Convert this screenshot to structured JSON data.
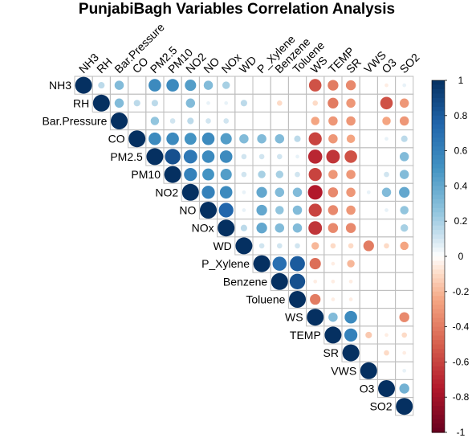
{
  "chart_data": {
    "type": "heatmap",
    "subtype": "correlation-matrix-upper-circles",
    "title": "PunjabiBagh Variables Correlation Analysis",
    "variables": [
      "NH3",
      "RH",
      "Bar.Pressure",
      "CO",
      "PM2.5",
      "PM10",
      "NO2",
      "NO",
      "NOx",
      "WD",
      "P_Xylene",
      "Benzene",
      "Toluene",
      "WS",
      "TEMP",
      "SR",
      "VWS",
      "O3",
      "SO2"
    ],
    "matrix": [
      [
        1,
        0.15,
        0.3,
        0,
        0.55,
        0.55,
        0.45,
        0.3,
        0.2,
        0,
        0,
        0,
        0,
        -0.55,
        -0.4,
        -0.35,
        0,
        -0.05,
        0.05
      ],
      [
        0.15,
        1,
        0.3,
        0.15,
        0.15,
        0,
        0.3,
        0.05,
        0.05,
        0.15,
        0,
        -0.1,
        0,
        -0.1,
        -0.4,
        -0.3,
        0,
        -0.55,
        -0.3
      ],
      [
        0.3,
        0.3,
        1,
        0,
        0.25,
        0.1,
        0.15,
        0.1,
        0.1,
        0,
        0,
        0,
        0,
        -0.25,
        -0.3,
        -0.3,
        0,
        -0.25,
        -0.3
      ],
      [
        0,
        0.15,
        0,
        1,
        0.55,
        0.55,
        0.5,
        0.55,
        0.45,
        0.3,
        0.3,
        0.3,
        0.15,
        -0.6,
        -0.3,
        -0.25,
        0,
        0.05,
        0.15
      ],
      [
        0.55,
        0.15,
        0.25,
        0.55,
        1,
        0.85,
        0.65,
        0.55,
        0.55,
        0.1,
        0.1,
        0.1,
        0.05,
        -0.7,
        -0.65,
        -0.55,
        0,
        0,
        0.3
      ],
      [
        0.55,
        0,
        0.1,
        0.55,
        0.85,
        1,
        0.6,
        0.5,
        0.45,
        0.1,
        0.2,
        0.2,
        0.1,
        -0.6,
        -0.3,
        -0.3,
        0,
        0.1,
        0.3
      ],
      [
        0.45,
        0.3,
        0.15,
        0.5,
        0.65,
        0.6,
        1,
        0.6,
        0.55,
        0.05,
        0.4,
        0.3,
        0.3,
        -0.75,
        -0.35,
        -0.3,
        0.05,
        0.3,
        0.4
      ],
      [
        0.3,
        0.05,
        0.1,
        0.55,
        0.55,
        0.5,
        0.6,
        1,
        0.75,
        0.05,
        0.4,
        0.25,
        0.3,
        -0.6,
        -0.35,
        -0.3,
        0,
        0.05,
        0.25
      ],
      [
        0.2,
        0.05,
        0.1,
        0.45,
        0.55,
        0.45,
        0.55,
        0.75,
        1,
        0.15,
        0.4,
        0.3,
        0.3,
        -0.65,
        -0.35,
        -0.35,
        0,
        0,
        0.2
      ],
      [
        0,
        0.15,
        0,
        0.3,
        0.1,
        0.1,
        0.05,
        0.05,
        0.15,
        1,
        0.1,
        0.1,
        0.1,
        -0.2,
        -0.1,
        -0.1,
        -0.4,
        -0.1,
        -0.25
      ],
      [
        0,
        0,
        0,
        0.3,
        0.1,
        0.2,
        0.4,
        0.4,
        0.4,
        0.1,
        1,
        0.7,
        0.8,
        -0.45,
        -0.05,
        -0.2,
        0,
        0,
        0
      ],
      [
        0,
        -0.1,
        0,
        0.3,
        0.1,
        0.2,
        0.3,
        0.25,
        0.3,
        0.1,
        0.7,
        1,
        0.85,
        -0.05,
        -0.05,
        -0.05,
        0,
        0,
        0
      ],
      [
        0,
        0,
        0,
        0.15,
        0.05,
        0.1,
        0.3,
        0.3,
        0.3,
        0.1,
        0.8,
        0.85,
        1,
        -0.4,
        -0.05,
        -0.05,
        0,
        0,
        0
      ],
      [
        -0.55,
        -0.1,
        -0.25,
        -0.6,
        -0.7,
        -0.6,
        -0.75,
        -0.6,
        -0.65,
        -0.2,
        -0.45,
        -0.05,
        -0.4,
        1,
        0.3,
        0.55,
        0,
        0,
        -0.35
      ],
      [
        -0.4,
        -0.4,
        -0.3,
        -0.3,
        -0.65,
        -0.3,
        -0.35,
        -0.35,
        -0.35,
        -0.1,
        -0.05,
        -0.05,
        -0.05,
        0.3,
        1,
        0.6,
        -0.15,
        -0.05,
        -0.1
      ],
      [
        -0.35,
        -0.3,
        -0.3,
        -0.25,
        -0.55,
        -0.3,
        -0.3,
        -0.3,
        -0.35,
        -0.1,
        -0.2,
        -0.05,
        -0.05,
        0.55,
        0.6,
        1,
        0,
        -0.1,
        -0.05
      ],
      [
        0,
        0,
        0,
        0,
        0,
        0,
        0.05,
        0,
        0,
        -0.4,
        0,
        0,
        0,
        0,
        -0.15,
        0,
        1,
        0,
        0.05
      ],
      [
        -0.05,
        -0.55,
        -0.25,
        0.05,
        0,
        0.1,
        0.3,
        0.05,
        0,
        -0.1,
        0,
        0,
        0,
        0,
        -0.05,
        -0.1,
        0,
        1,
        0.35
      ],
      [
        0.05,
        -0.3,
        -0.3,
        0.15,
        0.3,
        0.3,
        0.4,
        0.25,
        0.2,
        -0.25,
        0,
        0,
        0,
        -0.35,
        -0.1,
        -0.05,
        0.05,
        0.35,
        1
      ]
    ],
    "color_scale": {
      "min": -1,
      "max": 1,
      "stops": [
        {
          "value": -1,
          "color": "#67001F"
        },
        {
          "value": -0.75,
          "color": "#B2182B"
        },
        {
          "value": -0.5,
          "color": "#D6604D"
        },
        {
          "value": -0.25,
          "color": "#F4A582"
        },
        {
          "value": -0.1,
          "color": "#FDDBC7"
        },
        {
          "value": 0,
          "color": "#FFFFFF"
        },
        {
          "value": 0.1,
          "color": "#D1E5F0"
        },
        {
          "value": 0.25,
          "color": "#92C5DE"
        },
        {
          "value": 0.5,
          "color": "#4393C3"
        },
        {
          "value": 0.75,
          "color": "#2166AC"
        },
        {
          "value": 1,
          "color": "#053061"
        }
      ],
      "ticks": [
        "1",
        "0.8",
        "0.6",
        "0.4",
        "0.2",
        "0",
        "-0.2",
        "-0.4",
        "-0.6",
        "-0.8",
        "-1"
      ]
    },
    "grid_color": "#BEBEBE",
    "legend_position": "right",
    "layout_note": "upper triangle, circle size and color encode correlation"
  }
}
